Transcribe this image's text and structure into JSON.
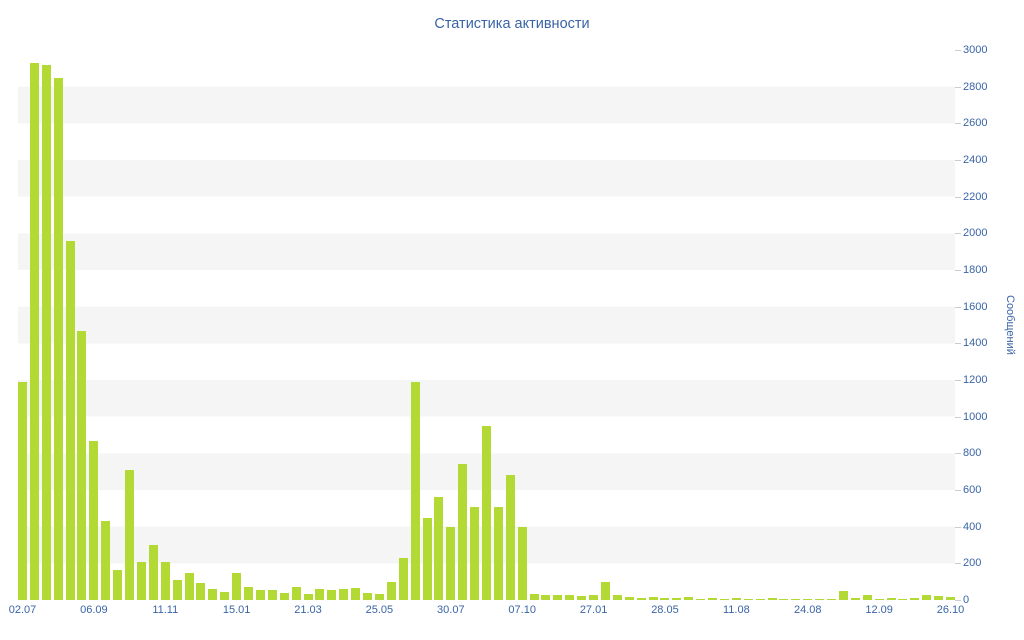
{
  "page": {
    "title": "Статистика активности"
  },
  "chart_data": {
    "type": "bar",
    "title": "Статистика активности",
    "xlabel": "",
    "ylabel": "Сообщений",
    "ylim": [
      0,
      3000
    ],
    "y_tick_step": 200,
    "y_ticks": [
      0,
      200,
      400,
      600,
      800,
      1000,
      1200,
      1400,
      1600,
      1800,
      2000,
      2200,
      2400,
      2600,
      2800,
      3000
    ],
    "legend": "none",
    "grid": "alternating horizontal bands every 200 units",
    "y_axis_side": "right",
    "values": [
      1190,
      2930,
      2920,
      2850,
      1960,
      1470,
      870,
      430,
      165,
      710,
      210,
      300,
      210,
      110,
      150,
      95,
      60,
      45,
      150,
      70,
      55,
      55,
      40,
      70,
      35,
      60,
      55,
      60,
      65,
      40,
      35,
      100,
      230,
      1190,
      450,
      560,
      400,
      740,
      510,
      950,
      510,
      680,
      400,
      35,
      30,
      30,
      25,
      20,
      25,
      100,
      30,
      15,
      10,
      15,
      10,
      10,
      15,
      5,
      10,
      5,
      10,
      5,
      5,
      10,
      5,
      5,
      5,
      5,
      5,
      50,
      10,
      25,
      5,
      10,
      5,
      10,
      25,
      20,
      15
    ],
    "x_tick_labels": [
      {
        "index": 0,
        "label": "02.07"
      },
      {
        "index": 6,
        "label": "06.09"
      },
      {
        "index": 12,
        "label": "11.11"
      },
      {
        "index": 18,
        "label": "15.01"
      },
      {
        "index": 24,
        "label": "21.03"
      },
      {
        "index": 30,
        "label": "25.05"
      },
      {
        "index": 36,
        "label": "30.07"
      },
      {
        "index": 42,
        "label": "07.10"
      },
      {
        "index": 48,
        "label": "27.01"
      },
      {
        "index": 54,
        "label": "28.05"
      },
      {
        "index": 60,
        "label": "11.08"
      },
      {
        "index": 66,
        "label": "24.08"
      },
      {
        "index": 72,
        "label": "12.09"
      },
      {
        "index": 78,
        "label": "26.10"
      }
    ],
    "colors": {
      "bar": "#b3d935",
      "axis_text": "#3a64a6",
      "stripe": "#f5f5f5",
      "tick": "#c6ccd8"
    }
  }
}
